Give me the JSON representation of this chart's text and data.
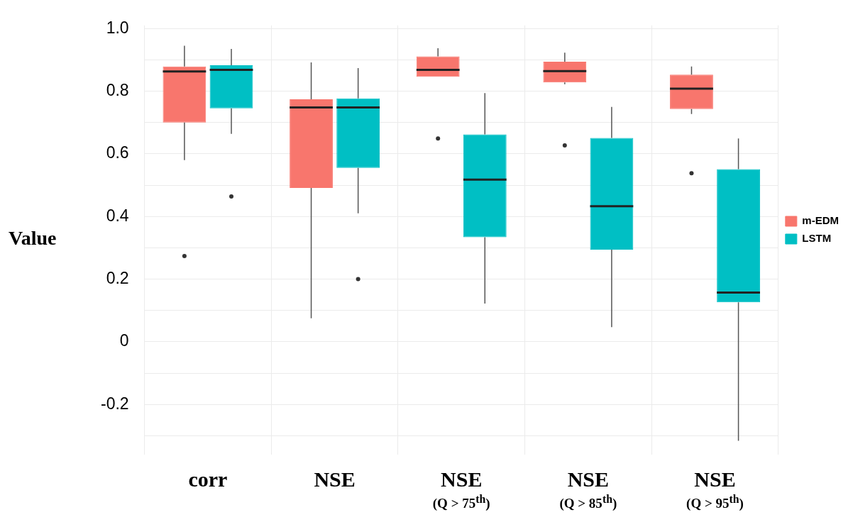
{
  "chart_data": {
    "type": "box",
    "ylabel": "Value",
    "categories": [
      "corr",
      "NSE",
      "NSE\n(Q > 75$^{th}$)",
      "NSE\n(Q > 85$^{th}$)",
      "NSE\n(Q > 95$^{th}$)"
    ],
    "series": [
      {
        "name": "m-EDM",
        "color": "#f8766d",
        "boxes": [
          {
            "low": 0.58,
            "q1": 0.7,
            "median": 0.863,
            "q3": 0.879,
            "high": 0.945,
            "outliers": [
              0.274
            ]
          },
          {
            "low": 0.075,
            "q1": 0.491,
            "median": 0.748,
            "q3": 0.774,
            "high": 0.892
          },
          {
            "low": 0.846,
            "q1": 0.846,
            "median": 0.868,
            "q3": 0.911,
            "high": 0.937,
            "outliers": [
              0.649
            ]
          },
          {
            "low": 0.822,
            "q1": 0.828,
            "median": 0.864,
            "q3": 0.894,
            "high": 0.923,
            "outliers": [
              0.627
            ]
          },
          {
            "low": 0.727,
            "q1": 0.743,
            "median": 0.808,
            "q3": 0.853,
            "high": 0.879,
            "outliers": [
              0.538
            ]
          }
        ]
      },
      {
        "name": "LSTM",
        "color": "#00bfc4",
        "boxes": [
          {
            "low": 0.664,
            "q1": 0.745,
            "median": 0.868,
            "q3": 0.883,
            "high": 0.935,
            "outliers": [
              0.464
            ]
          },
          {
            "low": 0.41,
            "q1": 0.555,
            "median": 0.748,
            "q3": 0.777,
            "high": 0.874,
            "outliers": [
              0.2
            ]
          },
          {
            "low": 0.122,
            "q1": 0.334,
            "median": 0.518,
            "q3": 0.662,
            "high": 0.794
          },
          {
            "low": 0.047,
            "q1": 0.294,
            "median": 0.433,
            "q3": 0.651,
            "high": 0.75
          },
          {
            "low": -0.316,
            "q1": 0.126,
            "median": 0.157,
            "q3": 0.551,
            "high": 0.649
          }
        ]
      }
    ],
    "ylim": [
      -0.36,
      1.01
    ],
    "yticks": [
      {
        "value": -0.3,
        "label": null
      },
      {
        "value": -0.2,
        "label": "-0.2"
      },
      {
        "value": -0.1,
        "label": null
      },
      0,
      {
        "value": 0.1,
        "label": null
      },
      0.2,
      {
        "value": 0.3,
        "label": null
      },
      0.4,
      {
        "value": 0.5,
        "label": null
      },
      0.6,
      {
        "value": 0.7,
        "label": null
      },
      0.8,
      {
        "value": 0.9,
        "label": null
      },
      {
        "value": 1.0,
        "label": "1.0"
      }
    ],
    "grid": true,
    "legend": "right"
  }
}
